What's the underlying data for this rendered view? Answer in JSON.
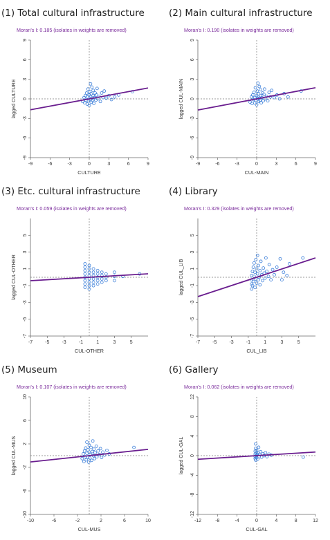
{
  "chart_data": [
    {
      "type": "scatter",
      "title": "(1) Total cultural infrastructure",
      "moran": "Moran's I: 0.185 (isolates in weights are removed)",
      "xlabel": "CULTURE",
      "ylabel": "lagged CULTURE",
      "xlim": [
        -9,
        9
      ],
      "ylim": [
        -9,
        9
      ],
      "xticks": [
        -9,
        -6,
        -3,
        0,
        3,
        6,
        9
      ],
      "yticks": [
        -9,
        -6,
        -3,
        0,
        3,
        6,
        9
      ],
      "slope": 0.185,
      "points": [
        [
          -1.0,
          -0.4
        ],
        [
          -0.8,
          0.2
        ],
        [
          -0.7,
          -0.6
        ],
        [
          -0.6,
          0.5
        ],
        [
          -0.5,
          -0.2
        ],
        [
          -0.4,
          0.9
        ],
        [
          -0.3,
          -0.8
        ],
        [
          -0.3,
          0.3
        ],
        [
          -0.2,
          1.5
        ],
        [
          -0.1,
          -0.3
        ],
        [
          0.0,
          0.6
        ],
        [
          0.0,
          -1.0
        ],
        [
          0.1,
          1.1
        ],
        [
          0.1,
          -0.1
        ],
        [
          0.2,
          0.4
        ],
        [
          0.2,
          2.3
        ],
        [
          0.3,
          -0.5
        ],
        [
          0.3,
          0.8
        ],
        [
          0.4,
          0.1
        ],
        [
          0.4,
          1.8
        ],
        [
          0.5,
          -0.3
        ],
        [
          0.6,
          0.5
        ],
        [
          0.6,
          1.3
        ],
        [
          0.7,
          -0.7
        ],
        [
          0.8,
          0.2
        ],
        [
          0.9,
          0.9
        ],
        [
          1.0,
          -0.2
        ],
        [
          1.1,
          0.6
        ],
        [
          1.2,
          1.6
        ],
        [
          1.3,
          0.0
        ],
        [
          1.5,
          0.4
        ],
        [
          1.7,
          -0.4
        ],
        [
          1.9,
          0.9
        ],
        [
          2.1,
          0.2
        ],
        [
          2.3,
          1.2
        ],
        [
          2.6,
          0.1
        ],
        [
          3.0,
          0.5
        ],
        [
          3.4,
          -0.1
        ],
        [
          3.9,
          0.3
        ],
        [
          4.5,
          0.6
        ],
        [
          6.6,
          1.1
        ]
      ]
    },
    {
      "type": "scatter",
      "title": "(2) Main cultural infrastructure",
      "moran": "Moran's I: 0.190 (isolates in weights are removed)",
      "xlabel": "CUL-MAIN",
      "ylabel": "lagged CUL-MAIN",
      "xlim": [
        -9,
        9
      ],
      "ylim": [
        -9,
        9
      ],
      "xticks": [
        -9,
        -6,
        -3,
        0,
        3,
        6,
        9
      ],
      "yticks": [
        -9,
        -6,
        -3,
        0,
        3,
        6,
        9
      ],
      "slope": 0.19,
      "points": [
        [
          -1.0,
          -0.5
        ],
        [
          -0.8,
          0.3
        ],
        [
          -0.7,
          -0.7
        ],
        [
          -0.6,
          0.6
        ],
        [
          -0.5,
          -0.1
        ],
        [
          -0.4,
          1.0
        ],
        [
          -0.3,
          -0.6
        ],
        [
          -0.3,
          0.2
        ],
        [
          -0.2,
          1.7
        ],
        [
          -0.1,
          -0.3
        ],
        [
          0.0,
          0.5
        ],
        [
          0.0,
          -0.9
        ],
        [
          0.1,
          1.2
        ],
        [
          0.1,
          0.0
        ],
        [
          0.2,
          0.4
        ],
        [
          0.2,
          2.4
        ],
        [
          0.3,
          -0.4
        ],
        [
          0.3,
          0.8
        ],
        [
          0.4,
          0.1
        ],
        [
          0.4,
          1.9
        ],
        [
          0.5,
          -0.2
        ],
        [
          0.6,
          0.5
        ],
        [
          0.6,
          1.4
        ],
        [
          0.7,
          -0.6
        ],
        [
          0.8,
          0.2
        ],
        [
          0.9,
          0.9
        ],
        [
          1.0,
          -0.3
        ],
        [
          1.1,
          0.7
        ],
        [
          1.2,
          1.5
        ],
        [
          1.3,
          0.0
        ],
        [
          1.5,
          0.4
        ],
        [
          1.7,
          -0.3
        ],
        [
          1.9,
          1.0
        ],
        [
          2.1,
          0.3
        ],
        [
          2.3,
          1.3
        ],
        [
          2.7,
          0.2
        ],
        [
          3.1,
          0.6
        ],
        [
          3.5,
          0.0
        ],
        [
          4.2,
          0.8
        ],
        [
          4.8,
          0.3
        ],
        [
          6.8,
          1.2
        ]
      ]
    },
    {
      "type": "scatter",
      "title": "(3) Etc. cultural infrastructure",
      "moran": "Moran's I: 0.059 (isolates in weights are removed)",
      "xlabel": "CUL-OTHER",
      "ylabel": "lagged CUL-OTHER",
      "xlim": [
        -7,
        7
      ],
      "ylim": [
        -7,
        7
      ],
      "xticks": [
        -7,
        -5,
        -3,
        -1,
        1,
        3,
        5
      ],
      "yticks": [
        -7,
        -5,
        -3,
        -1,
        1,
        3,
        5
      ],
      "slope": 0.059,
      "points": [
        [
          -0.5,
          -1.2
        ],
        [
          -0.5,
          -0.8
        ],
        [
          -0.5,
          -0.4
        ],
        [
          -0.5,
          0.0
        ],
        [
          -0.5,
          0.4
        ],
        [
          -0.5,
          0.8
        ],
        [
          -0.5,
          1.2
        ],
        [
          -0.5,
          1.6
        ],
        [
          0.0,
          -1.4
        ],
        [
          0.0,
          -1.0
        ],
        [
          0.0,
          -0.6
        ],
        [
          0.0,
          -0.2
        ],
        [
          0.0,
          0.2
        ],
        [
          0.0,
          0.6
        ],
        [
          0.0,
          1.0
        ],
        [
          0.0,
          1.4
        ],
        [
          0.5,
          -1.0
        ],
        [
          0.5,
          -0.6
        ],
        [
          0.5,
          -0.2
        ],
        [
          0.5,
          0.2
        ],
        [
          0.5,
          0.6
        ],
        [
          0.5,
          1.0
        ],
        [
          1.0,
          -0.8
        ],
        [
          1.0,
          -0.4
        ],
        [
          1.0,
          0.0
        ],
        [
          1.0,
          0.4
        ],
        [
          1.0,
          0.8
        ],
        [
          1.5,
          -0.6
        ],
        [
          1.5,
          -0.2
        ],
        [
          1.5,
          0.2
        ],
        [
          1.5,
          0.6
        ],
        [
          2.0,
          -0.4
        ],
        [
          2.0,
          0.0
        ],
        [
          2.0,
          0.4
        ],
        [
          3.0,
          -0.4
        ],
        [
          3.0,
          0.1
        ],
        [
          3.0,
          0.6
        ],
        [
          4.0,
          0.1
        ],
        [
          6.0,
          0.4
        ]
      ]
    },
    {
      "type": "scatter",
      "title": "(4) Library",
      "moran": "Moran's I: 0.329 (isolates in weights are removed)",
      "xlabel": "CUL_LIB",
      "ylabel": "lagged CUL_LIB",
      "xlim": [
        -7,
        7
      ],
      "ylim": [
        -7,
        7
      ],
      "xticks": [
        -7,
        -5,
        -3,
        -1,
        1,
        3,
        5
      ],
      "yticks": [
        -7,
        -5,
        -3,
        -1,
        1,
        3,
        5
      ],
      "slope": 0.329,
      "points": [
        [
          -0.6,
          -1.4
        ],
        [
          -0.6,
          -0.8
        ],
        [
          -0.6,
          -0.3
        ],
        [
          -0.6,
          0.2
        ],
        [
          -0.5,
          0.7
        ],
        [
          -0.5,
          -1.0
        ],
        [
          -0.4,
          1.2
        ],
        [
          -0.4,
          -0.5
        ],
        [
          -0.3,
          0.1
        ],
        [
          -0.3,
          1.7
        ],
        [
          -0.2,
          -1.2
        ],
        [
          -0.2,
          0.6
        ],
        [
          -0.1,
          -0.2
        ],
        [
          -0.1,
          2.1
        ],
        [
          0.0,
          1.0
        ],
        [
          0.0,
          -0.7
        ],
        [
          0.1,
          0.4
        ],
        [
          0.1,
          2.6
        ],
        [
          0.2,
          -0.3
        ],
        [
          0.2,
          1.4
        ],
        [
          0.3,
          0.0
        ],
        [
          0.4,
          0.8
        ],
        [
          0.4,
          -0.9
        ],
        [
          0.5,
          1.9
        ],
        [
          0.6,
          0.3
        ],
        [
          0.7,
          -0.4
        ],
        [
          0.8,
          1.1
        ],
        [
          0.9,
          0.5
        ],
        [
          1.0,
          -0.1
        ],
        [
          1.1,
          2.3
        ],
        [
          1.2,
          0.7
        ],
        [
          1.4,
          0.1
        ],
        [
          1.5,
          1.5
        ],
        [
          1.7,
          -0.3
        ],
        [
          1.9,
          0.9
        ],
        [
          2.1,
          0.3
        ],
        [
          2.4,
          1.2
        ],
        [
          2.8,
          2.2
        ],
        [
          3.0,
          -0.3
        ],
        [
          3.2,
          0.6
        ],
        [
          3.6,
          0.2
        ],
        [
          3.9,
          1.6
        ],
        [
          5.5,
          2.3
        ]
      ]
    },
    {
      "type": "scatter",
      "title": "(5) Museum",
      "moran": "Moran's I: 0.107 (isolates in weights are removed)",
      "xlabel": "CUL-MUS",
      "ylabel": "lagged CUL-MUS",
      "xlim": [
        -10,
        10
      ],
      "ylim": [
        -10,
        10
      ],
      "xticks": [
        -10,
        -6,
        -2,
        2,
        6,
        10
      ],
      "yticks": [
        -10,
        -6,
        -2,
        2,
        6,
        10
      ],
      "slope": 0.107,
      "points": [
        [
          -1.2,
          -0.5
        ],
        [
          -1.0,
          0.3
        ],
        [
          -0.9,
          -1.0
        ],
        [
          -0.8,
          0.8
        ],
        [
          -0.7,
          -0.2
        ],
        [
          -0.6,
          1.3
        ],
        [
          -0.5,
          -0.7
        ],
        [
          -0.4,
          0.4
        ],
        [
          -0.4,
          2.3
        ],
        [
          -0.3,
          -0.3
        ],
        [
          -0.2,
          1.0
        ],
        [
          -0.1,
          -1.1
        ],
        [
          0.0,
          0.6
        ],
        [
          0.0,
          1.8
        ],
        [
          0.1,
          -0.4
        ],
        [
          0.2,
          0.2
        ],
        [
          0.3,
          1.4
        ],
        [
          0.4,
          -0.8
        ],
        [
          0.5,
          0.7
        ],
        [
          0.6,
          2.5
        ],
        [
          0.7,
          0.0
        ],
        [
          0.8,
          1.1
        ],
        [
          0.9,
          -0.5
        ],
        [
          1.0,
          0.5
        ],
        [
          1.2,
          1.6
        ],
        [
          1.3,
          -0.2
        ],
        [
          1.5,
          0.8
        ],
        [
          1.7,
          0.2
        ],
        [
          1.9,
          1.2
        ],
        [
          2.1,
          -0.3
        ],
        [
          2.3,
          0.6
        ],
        [
          2.6,
          0.1
        ],
        [
          3.0,
          0.9
        ],
        [
          3.4,
          0.3
        ],
        [
          7.6,
          1.4
        ]
      ]
    },
    {
      "type": "scatter",
      "title": "(6) Gallery",
      "moran": "Moran's I: 0.062 (isolates in weights are removed)",
      "xlabel": "CUL-GAL",
      "ylabel": "lagged CUL-GAL",
      "xlim": [
        -12,
        12
      ],
      "ylim": [
        -12,
        12
      ],
      "xticks": [
        -12,
        -8,
        -4,
        0,
        4,
        8,
        12
      ],
      "yticks": [
        -12,
        -8,
        -4,
        0,
        4,
        8,
        12
      ],
      "slope": 0.062,
      "points": [
        [
          -0.3,
          -0.6
        ],
        [
          -0.3,
          -0.2
        ],
        [
          -0.3,
          0.3
        ],
        [
          -0.3,
          0.9
        ],
        [
          -0.2,
          1.5
        ],
        [
          -0.2,
          -0.9
        ],
        [
          -0.2,
          2.4
        ],
        [
          -0.1,
          0.0
        ],
        [
          -0.1,
          0.6
        ],
        [
          0.0,
          -0.4
        ],
        [
          0.0,
          1.1
        ],
        [
          0.1,
          0.2
        ],
        [
          0.2,
          -0.7
        ],
        [
          0.3,
          0.5
        ],
        [
          0.4,
          1.7
        ],
        [
          0.5,
          -0.2
        ],
        [
          0.6,
          0.3
        ],
        [
          0.8,
          0.8
        ],
        [
          1.0,
          -0.3
        ],
        [
          1.2,
          0.4
        ],
        [
          1.5,
          0.0
        ],
        [
          1.8,
          0.6
        ],
        [
          2.1,
          -0.2
        ],
        [
          2.5,
          0.3
        ],
        [
          3.0,
          0.1
        ],
        [
          9.5,
          -0.3
        ]
      ]
    }
  ]
}
